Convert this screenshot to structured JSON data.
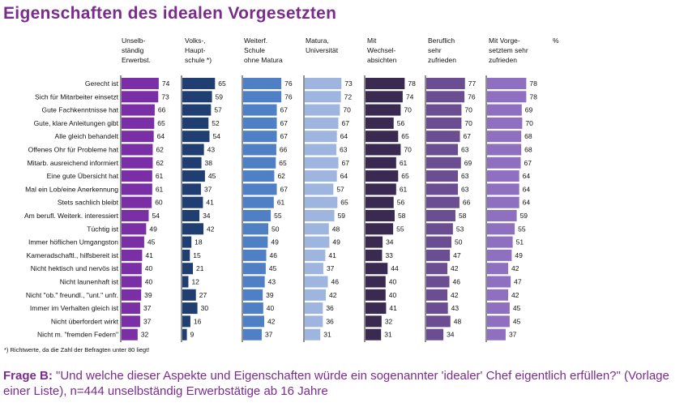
{
  "title": "Eigenschaften des idealen Vorgesetzten",
  "percent_label": "%",
  "footnote": "*) Richtwerte, da die Zahl der Befragten unter 80 liegt!",
  "question": {
    "label": "Frage B:",
    "text": "\"Und welche dieser Aspekte und Eigenschaften würde ein sogenannter 'idealer' Chef eigentlich erfüllen?\" (Vorlage einer Liste), n=444 unselbständig Erwerbstätige ab 16 Jahre"
  },
  "colors": {
    "title": "#7b2b8c",
    "series": [
      "#7b2fa6",
      "#1f3f73",
      "#4f7fc4",
      "#9db5df",
      "#3a2a52",
      "#6b4d91",
      "#8f6fbf"
    ]
  },
  "chart_data": {
    "type": "bar",
    "orientation": "horizontal",
    "title": "Eigenschaften des idealen Vorgesetzten",
    "unit": "%",
    "xlim": [
      0,
      100
    ],
    "categories": [
      "Gerecht ist",
      "Sich für Mitarbeiter einsetzt",
      "Gute Fachkenntnisse hat",
      "Gute, klare Anleitungen gibt",
      "Alle gleich behandelt",
      "Offenes Ohr für Probleme hat",
      "Mitarb. ausreichend informiert",
      "Eine gute Übersicht hat",
      "Mal ein Lob/eine Anerkennung",
      "Stets sachlich bleibt",
      "Am berufl. Weiterk. interessiert",
      "Tüchtig ist",
      "Immer höflichen Umgangston",
      "Kameradschaftl., hilfsbereit ist",
      "Nicht hektisch und nervös ist",
      "Nicht launenhaft ist",
      "Nicht \"ob.\" freundl., \"unt.\" unfr.",
      "Immer im Verhalten gleich ist",
      "Nicht überfordert wirkt",
      "Nicht m. \"fremden Federn\""
    ],
    "series": [
      {
        "name": "Unselb-\nständig\nErwerbst.",
        "values": [
          74,
          73,
          66,
          65,
          64,
          62,
          62,
          61,
          61,
          60,
          54,
          49,
          45,
          41,
          40,
          40,
          39,
          37,
          37,
          32
        ]
      },
      {
        "name": "Volks-,\nHaupt-\nschule *)",
        "values": [
          65,
          59,
          57,
          52,
          54,
          43,
          38,
          45,
          37,
          41,
          34,
          42,
          18,
          15,
          21,
          12,
          27,
          30,
          16,
          9
        ]
      },
      {
        "name": "Weiterf.\nSchule\nohne Matura",
        "values": [
          76,
          76,
          67,
          67,
          67,
          66,
          65,
          62,
          67,
          61,
          55,
          50,
          49,
          46,
          45,
          43,
          39,
          40,
          42,
          37
        ]
      },
      {
        "name": "Matura,\nUniversität",
        "values": [
          73,
          72,
          70,
          67,
          64,
          63,
          67,
          64,
          57,
          65,
          59,
          48,
          49,
          41,
          37,
          46,
          42,
          36,
          36,
          31
        ]
      },
      {
        "name": "Mit\nWechsel-\nabsichten",
        "values": [
          78,
          74,
          70,
          56,
          65,
          70,
          61,
          65,
          61,
          56,
          58,
          55,
          34,
          33,
          44,
          40,
          40,
          41,
          32,
          31
        ]
      },
      {
        "name": "Beruflich\nsehr\nzufrieden",
        "values": [
          77,
          76,
          70,
          70,
          67,
          63,
          69,
          63,
          63,
          66,
          58,
          53,
          50,
          47,
          42,
          46,
          42,
          43,
          48,
          34
        ]
      },
      {
        "name": "Mit Vorge-\nsetztem sehr\nzufrieden",
        "values": [
          78,
          78,
          69,
          70,
          68,
          68,
          67,
          64,
          64,
          64,
          59,
          55,
          51,
          49,
          42,
          47,
          42,
          45,
          45,
          37
        ]
      }
    ]
  }
}
